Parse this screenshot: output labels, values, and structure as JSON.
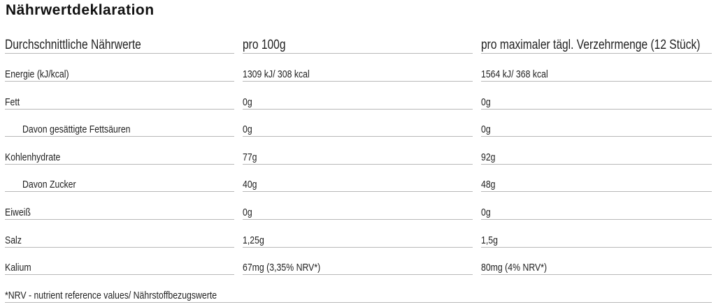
{
  "header": {
    "title": "Nährwertdeklaration"
  },
  "table": {
    "columns": [
      "Durchschnittliche Nährwerte",
      "pro 100g",
      "pro maximaler tägl. Verzehrmenge (12 Stück)"
    ],
    "rows": [
      [
        "Energie (kJ/kcal)",
        "1309 kJ/ 308 kcal",
        "1564 kJ/ 368 kcal"
      ],
      [
        "Fett",
        "0g",
        "0g"
      ],
      [
        "Davon gesättigte Fettsäuren",
        "0g",
        "0g"
      ],
      [
        "Kohlenhydrate",
        "77g",
        "92g"
      ],
      [
        "Davon Zucker",
        "40g",
        "48g"
      ],
      [
        "Eiweiß",
        "0g",
        "0g"
      ],
      [
        "Salz",
        "1,25g",
        "1,5g"
      ],
      [
        "Kalium",
        "67mg (3,35% NRV*)",
        "80mg (4% NRV*)"
      ]
    ]
  },
  "footnote": "*NRV - nutrient reference values/ Nährstoffbezugswerte"
}
